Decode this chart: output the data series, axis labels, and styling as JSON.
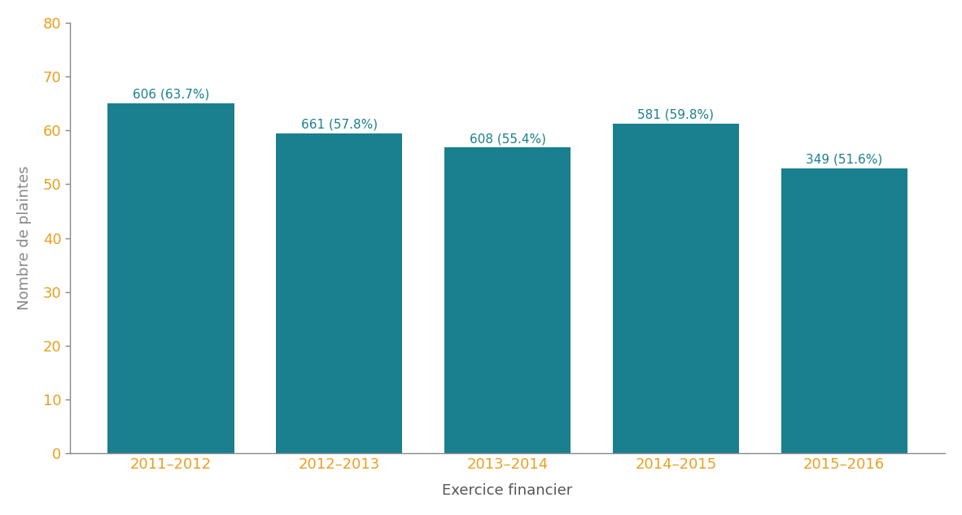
{
  "categories": [
    "2011–2012",
    "2012–2013",
    "2013–2014",
    "2014–2015",
    "2015–2016"
  ],
  "values": [
    65.0,
    59.5,
    56.8,
    61.2,
    53.0
  ],
  "bar_labels": [
    "606 (63.7%)",
    "661 (57.8%)",
    "608 (55.4%)",
    "581 (59.8%)",
    "349 (51.6%)"
  ],
  "bar_color": "#1a7f8e",
  "label_color": "#1a7f8e",
  "ytick_label_color": "#e8a020",
  "xtick_label_color": "#e8a020",
  "ylabel_color": "#888888",
  "xlabel_color": "#555555",
  "xlabel": "Exercice financier",
  "ylabel": "Nombre de plaintes",
  "ylim": [
    0,
    80
  ],
  "yticks": [
    0,
    10,
    20,
    30,
    40,
    50,
    60,
    70,
    80
  ],
  "background_color": "#ffffff",
  "bar_label_fontsize": 11,
  "axis_label_fontsize": 13,
  "tick_label_fontsize": 13,
  "spine_color": "#888888",
  "bar_width": 0.75
}
